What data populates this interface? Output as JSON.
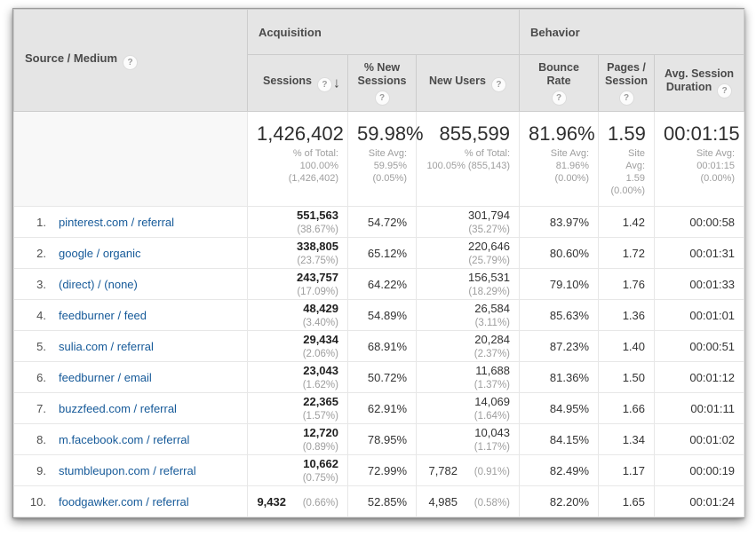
{
  "table": {
    "dimension_header": "Source / Medium",
    "groups": {
      "acquisition": "Acquisition",
      "behavior": "Behavior"
    },
    "metrics": {
      "sessions": "Sessions",
      "new_sessions": "% New Sessions",
      "new_users": "New Users",
      "bounce_rate": "Bounce Rate",
      "pages_session": "Pages / Session",
      "avg_duration": "Avg. Session Duration"
    },
    "sort": {
      "column": "sessions",
      "direction": "descending"
    },
    "summary": {
      "sessions": {
        "value": "1,426,402",
        "sub": "% of Total: 100.00% (1,426,402)"
      },
      "new_sessions": {
        "value": "59.98%",
        "sub": "Site Avg: 59.95% (0.05%)"
      },
      "new_users": {
        "value": "855,599",
        "sub": "% of Total: 100.05% (855,143)"
      },
      "bounce_rate": {
        "value": "81.96%",
        "sub": "Site Avg: 81.96% (0.00%)"
      },
      "pages_session": {
        "value": "1.59",
        "sub": "Site Avg: 1.59 (0.00%)"
      },
      "avg_duration": {
        "value": "00:01:15",
        "sub": "Site Avg: 00:01:15 (0.00%)"
      }
    },
    "rows": [
      {
        "rank": "1.",
        "source": "pinterest.com / referral",
        "sessions": "551,563",
        "sessions_pct": "(38.67%)",
        "new_sessions": "54.72%",
        "new_users": "301,794",
        "new_users_pct": "(35.27%)",
        "bounce_rate": "83.97%",
        "pages_session": "1.42",
        "avg_duration": "00:00:58"
      },
      {
        "rank": "2.",
        "source": "google / organic",
        "sessions": "338,805",
        "sessions_pct": "(23.75%)",
        "new_sessions": "65.12%",
        "new_users": "220,646",
        "new_users_pct": "(25.79%)",
        "bounce_rate": "80.60%",
        "pages_session": "1.72",
        "avg_duration": "00:01:31"
      },
      {
        "rank": "3.",
        "source": "(direct) / (none)",
        "sessions": "243,757",
        "sessions_pct": "(17.09%)",
        "new_sessions": "64.22%",
        "new_users": "156,531",
        "new_users_pct": "(18.29%)",
        "bounce_rate": "79.10%",
        "pages_session": "1.76",
        "avg_duration": "00:01:33"
      },
      {
        "rank": "4.",
        "source": "feedburner / feed",
        "sessions": "48,429",
        "sessions_pct": "(3.40%)",
        "new_sessions": "54.89%",
        "new_users": "26,584",
        "new_users_pct": "(3.11%)",
        "bounce_rate": "85.63%",
        "pages_session": "1.36",
        "avg_duration": "00:01:01"
      },
      {
        "rank": "5.",
        "source": "sulia.com / referral",
        "sessions": "29,434",
        "sessions_pct": "(2.06%)",
        "new_sessions": "68.91%",
        "new_users": "20,284",
        "new_users_pct": "(2.37%)",
        "bounce_rate": "87.23%",
        "pages_session": "1.40",
        "avg_duration": "00:00:51"
      },
      {
        "rank": "6.",
        "source": "feedburner / email",
        "sessions": "23,043",
        "sessions_pct": "(1.62%)",
        "new_sessions": "50.72%",
        "new_users": "11,688",
        "new_users_pct": "(1.37%)",
        "bounce_rate": "81.36%",
        "pages_session": "1.50",
        "avg_duration": "00:01:12"
      },
      {
        "rank": "7.",
        "source": "buzzfeed.com / referral",
        "sessions": "22,365",
        "sessions_pct": "(1.57%)",
        "new_sessions": "62.91%",
        "new_users": "14,069",
        "new_users_pct": "(1.64%)",
        "bounce_rate": "84.95%",
        "pages_session": "1.66",
        "avg_duration": "00:01:11"
      },
      {
        "rank": "8.",
        "source": "m.facebook.com / referral",
        "sessions": "12,720",
        "sessions_pct": "(0.89%)",
        "new_sessions": "78.95%",
        "new_users": "10,043",
        "new_users_pct": "(1.17%)",
        "bounce_rate": "84.15%",
        "pages_session": "1.34",
        "avg_duration": "00:01:02"
      },
      {
        "rank": "9.",
        "source": "stumbleupon.com / referral",
        "sessions": "10,662",
        "sessions_pct": "(0.75%)",
        "new_sessions": "72.99%",
        "new_users": "7,782",
        "new_users_pct": "(0.91%)",
        "bounce_rate": "82.49%",
        "pages_session": "1.17",
        "avg_duration": "00:00:19"
      },
      {
        "rank": "10.",
        "source": "foodgawker.com / referral",
        "sessions": "9,432",
        "sessions_pct": "(0.66%)",
        "new_sessions": "52.85%",
        "new_users": "4,985",
        "new_users_pct": "(0.58%)",
        "bounce_rate": "82.20%",
        "pages_session": "1.65",
        "avg_duration": "00:01:24"
      }
    ]
  },
  "colors": {
    "link": "#165a99",
    "header_bg": "#e5e5e5",
    "secondary_text": "#9e9e9e"
  }
}
